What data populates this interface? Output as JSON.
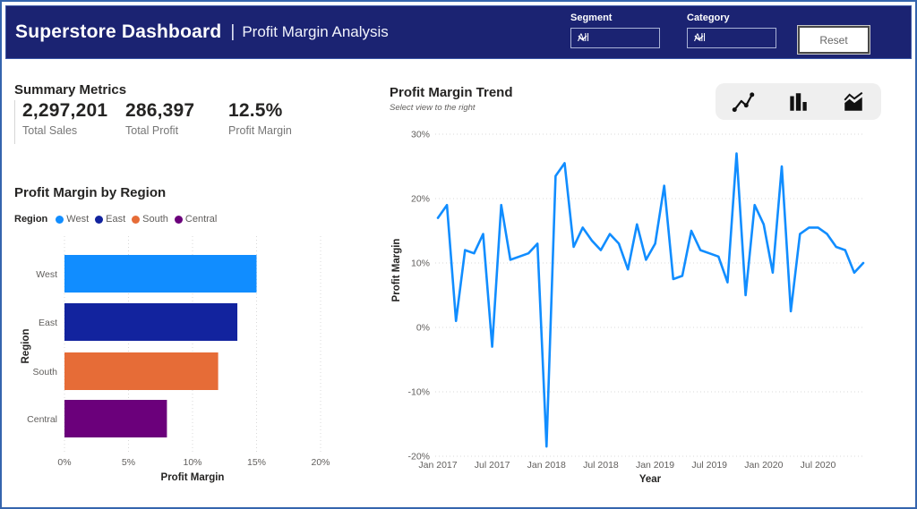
{
  "header": {
    "title": "Superstore Dashboard",
    "separator": "|",
    "subtitle": "Profit Margin Analysis",
    "filters": [
      {
        "label": "Segment",
        "value": "All"
      },
      {
        "label": "Category",
        "value": "All"
      }
    ],
    "reset_label": "Reset",
    "colors": {
      "background": "#1B2372",
      "border": "#3A55A4"
    }
  },
  "summary": {
    "title": "Summary Metrics",
    "metrics": [
      {
        "value": "2,297,201",
        "label": "Total Sales"
      },
      {
        "value": "286,397",
        "label": "Total Profit"
      },
      {
        "value": "12.5%",
        "label": "Profit Margin"
      }
    ]
  },
  "trend_header": {
    "title": "Profit Margin Trend",
    "subtitle": "Select view to the right",
    "view_icons": [
      "line-chart",
      "bar-chart",
      "area-chart"
    ]
  },
  "icons": {
    "dropdown_chevron": "chevron-down"
  },
  "chart_data": [
    {
      "type": "bar",
      "orientation": "horizontal",
      "title": "Profit Margin by Region",
      "legend_title": "Region",
      "legend_position": "top",
      "categories": [
        "West",
        "East",
        "South",
        "Central"
      ],
      "values": [
        15,
        13.5,
        12,
        8
      ],
      "colors": [
        "#118DFF",
        "#12239E",
        "#E66C37",
        "#6B007B"
      ],
      "xlabel": "Profit Margin",
      "ylabel": "Region",
      "xlim": [
        0,
        20
      ],
      "x_tick_labels": [
        "0%",
        "5%",
        "10%",
        "15%",
        "20%"
      ],
      "grid": "vertical-dotted"
    },
    {
      "type": "line",
      "title": "Profit Margin Trend",
      "xlabel": "Year",
      "ylabel": "Profit Margin",
      "ylim": [
        -20,
        30
      ],
      "y_tick_labels": [
        "30%",
        "20%",
        "10%",
        "0%",
        "-10%",
        "-20%"
      ],
      "x_tick_labels": [
        "Jan 2017",
        "Jul 2017",
        "Jan 2018",
        "Jul 2018",
        "Jan 2019",
        "Jul 2019",
        "Jan 2020",
        "Jul 2020"
      ],
      "line_color": "#118DFF",
      "grid": "horizontal-dotted",
      "x": [
        "Jan 2017",
        "Feb 2017",
        "Mar 2017",
        "Apr 2017",
        "May 2017",
        "Jun 2017",
        "Jul 2017",
        "Aug 2017",
        "Sep 2017",
        "Oct 2017",
        "Nov 2017",
        "Dec 2017",
        "Jan 2018",
        "Feb 2018",
        "Mar 2018",
        "Apr 2018",
        "May 2018",
        "Jun 2018",
        "Jul 2018",
        "Aug 2018",
        "Sep 2018",
        "Oct 2018",
        "Nov 2018",
        "Dec 2018",
        "Jan 2019",
        "Feb 2019",
        "Mar 2019",
        "Apr 2019",
        "May 2019",
        "Jun 2019",
        "Jul 2019",
        "Aug 2019",
        "Sep 2019",
        "Oct 2019",
        "Nov 2019",
        "Dec 2019",
        "Jan 2020",
        "Feb 2020",
        "Mar 2020",
        "Apr 2020",
        "May 2020",
        "Jun 2020",
        "Jul 2020",
        "Aug 2020",
        "Sep 2020",
        "Oct 2020",
        "Nov 2020",
        "Dec 2020"
      ],
      "values": [
        17,
        19,
        1,
        12,
        11.5,
        14.5,
        -3,
        19,
        10.5,
        11,
        11.5,
        13,
        -18.5,
        23.5,
        25.5,
        12.5,
        15.5,
        13.5,
        12,
        14.5,
        13,
        9,
        16,
        10.5,
        13,
        22,
        7.5,
        8,
        15,
        12,
        11.5,
        11,
        7,
        27,
        5,
        19,
        16,
        8.5,
        25,
        2.5,
        14.5,
        15.5,
        15.5,
        14.5,
        12.5,
        12,
        8.5,
        10
      ]
    }
  ]
}
